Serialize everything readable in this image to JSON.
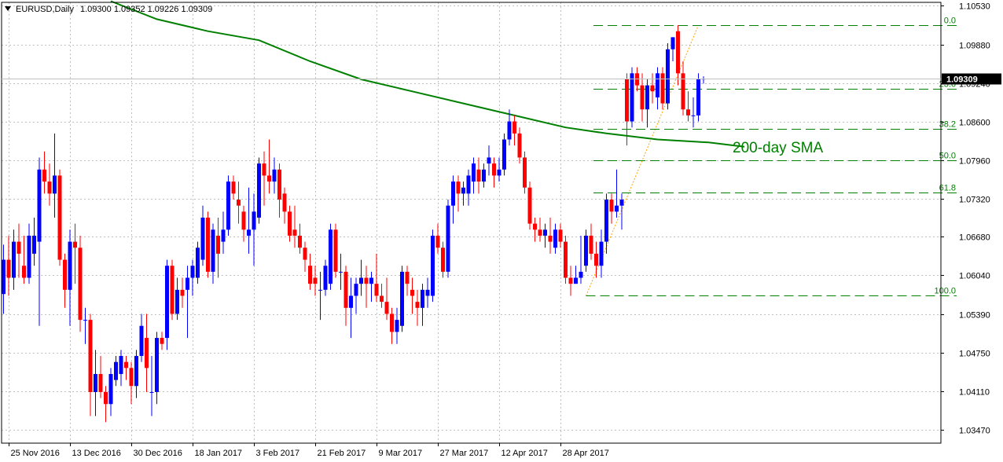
{
  "header": {
    "symbol_text": "EURUSD,Daily",
    "ohlc_text": "1.09300 1.09352 1.09226 1.09309"
  },
  "colors": {
    "bull": "#0000ff",
    "bear": "#ff0000",
    "sma": "#008000",
    "fib": "#008000",
    "grid": "#c0c0c0",
    "fib_trend": "#ffa500"
  },
  "chart_data": {
    "type": "candlestick",
    "symbol": "EURUSD",
    "timeframe": "Daily",
    "ylim": [
      1.0325,
      1.1058
    ],
    "y_ticks": [
      "1.10530",
      "1.09880",
      "1.09240",
      "1.08600",
      "1.07960",
      "1.07320",
      "1.06680",
      "1.06040",
      "1.05390",
      "1.04750",
      "1.04110",
      "1.03470"
    ],
    "x_tick_labels": [
      "25 Nov 2016",
      "13 Dec 2016",
      "30 Dec 2016",
      "18 Jan 2017",
      "3 Feb 2017",
      "21 Feb 2017",
      "9 Mar 2017",
      "27 Mar 2017",
      "12 Apr 2017",
      "28 Apr 2017"
    ],
    "x_tick_positions": [
      1,
      13,
      25,
      37,
      49,
      61,
      73,
      85,
      97,
      109
    ],
    "current_price": "1.09309",
    "candles": [
      {
        "o": 1.0573,
        "h": 1.0655,
        "l": 1.054,
        "c": 1.063
      },
      {
        "o": 1.063,
        "h": 1.067,
        "l": 1.057,
        "c": 1.06
      },
      {
        "o": 1.06,
        "h": 1.068,
        "l": 1.058,
        "c": 1.066
      },
      {
        "o": 1.066,
        "h": 1.069,
        "l": 1.06,
        "c": 1.064
      },
      {
        "o": 1.062,
        "h": 1.067,
        "l": 1.059,
        "c": 1.06
      },
      {
        "o": 1.06,
        "h": 1.069,
        "l": 1.059,
        "c": 1.067
      },
      {
        "o": 1.064,
        "h": 1.07,
        "l": 1.062,
        "c": 1.067
      },
      {
        "o": 1.066,
        "h": 1.08,
        "l": 1.052,
        "c": 1.078
      },
      {
        "o": 1.078,
        "h": 1.081,
        "l": 1.074,
        "c": 1.076
      },
      {
        "o": 1.076,
        "h": 1.079,
        "l": 1.072,
        "c": 1.074
      },
      {
        "o": 1.074,
        "h": 1.084,
        "l": 1.07,
        "c": 1.077
      },
      {
        "o": 1.077,
        "h": 1.078,
        "l": 1.062,
        "c": 1.063
      },
      {
        "o": 1.063,
        "h": 1.064,
        "l": 1.055,
        "c": 1.058
      },
      {
        "o": 1.058,
        "h": 1.068,
        "l": 1.052,
        "c": 1.066
      },
      {
        "o": 1.066,
        "h": 1.069,
        "l": 1.059,
        "c": 1.065
      },
      {
        "o": 1.065,
        "h": 1.067,
        "l": 1.051,
        "c": 1.053
      },
      {
        "o": 1.053,
        "h": 1.055,
        "l": 1.049,
        "c": 1.053
      },
      {
        "o": 1.053,
        "h": 1.054,
        "l": 1.037,
        "c": 1.041
      },
      {
        "o": 1.041,
        "h": 1.048,
        "l": 1.037,
        "c": 1.044
      },
      {
        "o": 1.044,
        "h": 1.047,
        "l": 1.04,
        "c": 1.041
      },
      {
        "o": 1.041,
        "h": 1.042,
        "l": 1.036,
        "c": 1.039
      },
      {
        "o": 1.039,
        "h": 1.045,
        "l": 1.037,
        "c": 1.044
      },
      {
        "o": 1.043,
        "h": 1.047,
        "l": 1.042,
        "c": 1.046
      },
      {
        "o": 1.044,
        "h": 1.048,
        "l": 1.042,
        "c": 1.047
      },
      {
        "o": 1.046,
        "h": 1.047,
        "l": 1.043,
        "c": 1.045
      },
      {
        "o": 1.045,
        "h": 1.046,
        "l": 1.039,
        "c": 1.042
      },
      {
        "o": 1.042,
        "h": 1.048,
        "l": 1.04,
        "c": 1.047
      },
      {
        "o": 1.047,
        "h": 1.054,
        "l": 1.046,
        "c": 1.052
      },
      {
        "o": 1.05,
        "h": 1.054,
        "l": 1.041,
        "c": 1.045
      },
      {
        "o": 1.041,
        "h": 1.047,
        "l": 1.037,
        "c": 1.041
      },
      {
        "o": 1.041,
        "h": 1.051,
        "l": 1.039,
        "c": 1.05
      },
      {
        "o": 1.05,
        "h": 1.051,
        "l": 1.048,
        "c": 1.049
      },
      {
        "o": 1.05,
        "h": 1.063,
        "l": 1.048,
        "c": 1.062
      },
      {
        "o": 1.062,
        "h": 1.063,
        "l": 1.053,
        "c": 1.054
      },
      {
        "o": 1.054,
        "h": 1.06,
        "l": 1.053,
        "c": 1.058
      },
      {
        "o": 1.058,
        "h": 1.06,
        "l": 1.055,
        "c": 1.057
      },
      {
        "o": 1.058,
        "h": 1.062,
        "l": 1.05,
        "c": 1.06
      },
      {
        "o": 1.06,
        "h": 1.063,
        "l": 1.057,
        "c": 1.062
      },
      {
        "o": 1.06,
        "h": 1.066,
        "l": 1.059,
        "c": 1.065
      },
      {
        "o": 1.063,
        "h": 1.072,
        "l": 1.062,
        "c": 1.07
      },
      {
        "o": 1.07,
        "h": 1.071,
        "l": 1.06,
        "c": 1.061
      },
      {
        "o": 1.061,
        "h": 1.069,
        "l": 1.059,
        "c": 1.068
      },
      {
        "o": 1.067,
        "h": 1.07,
        "l": 1.06,
        "c": 1.064
      },
      {
        "o": 1.066,
        "h": 1.071,
        "l": 1.064,
        "c": 1.068
      },
      {
        "o": 1.068,
        "h": 1.077,
        "l": 1.067,
        "c": 1.076
      },
      {
        "o": 1.076,
        "h": 1.077,
        "l": 1.073,
        "c": 1.074
      },
      {
        "o": 1.073,
        "h": 1.076,
        "l": 1.069,
        "c": 1.072
      },
      {
        "o": 1.071,
        "h": 1.072,
        "l": 1.066,
        "c": 1.068
      },
      {
        "o": 1.067,
        "h": 1.075,
        "l": 1.064,
        "c": 1.068
      },
      {
        "o": 1.068,
        "h": 1.074,
        "l": 1.062,
        "c": 1.071
      },
      {
        "o": 1.07,
        "h": 1.08,
        "l": 1.069,
        "c": 1.079
      },
      {
        "o": 1.079,
        "h": 1.081,
        "l": 1.072,
        "c": 1.077
      },
      {
        "o": 1.077,
        "h": 1.083,
        "l": 1.074,
        "c": 1.076
      },
      {
        "o": 1.076,
        "h": 1.08,
        "l": 1.074,
        "c": 1.078
      },
      {
        "o": 1.078,
        "h": 1.079,
        "l": 1.07,
        "c": 1.073
      },
      {
        "o": 1.074,
        "h": 1.075,
        "l": 1.069,
        "c": 1.071
      },
      {
        "o": 1.071,
        "h": 1.072,
        "l": 1.066,
        "c": 1.067
      },
      {
        "o": 1.068,
        "h": 1.072,
        "l": 1.065,
        "c": 1.067
      },
      {
        "o": 1.067,
        "h": 1.069,
        "l": 1.064,
        "c": 1.065
      },
      {
        "o": 1.065,
        "h": 1.066,
        "l": 1.061,
        "c": 1.063
      },
      {
        "o": 1.062,
        "h": 1.064,
        "l": 1.058,
        "c": 1.059
      },
      {
        "o": 1.06,
        "h": 1.062,
        "l": 1.057,
        "c": 1.059
      },
      {
        "o": 1.058,
        "h": 1.061,
        "l": 1.053,
        "c": 1.058
      },
      {
        "o": 1.058,
        "h": 1.063,
        "l": 1.057,
        "c": 1.062
      },
      {
        "o": 1.059,
        "h": 1.069,
        "l": 1.058,
        "c": 1.068
      },
      {
        "o": 1.068,
        "h": 1.069,
        "l": 1.06,
        "c": 1.061
      },
      {
        "o": 1.061,
        "h": 1.064,
        "l": 1.058,
        "c": 1.061
      },
      {
        "o": 1.061,
        "h": 1.062,
        "l": 1.052,
        "c": 1.055
      },
      {
        "o": 1.055,
        "h": 1.06,
        "l": 1.05,
        "c": 1.057
      },
      {
        "o": 1.057,
        "h": 1.06,
        "l": 1.054,
        "c": 1.059
      },
      {
        "o": 1.059,
        "h": 1.063,
        "l": 1.057,
        "c": 1.06
      },
      {
        "o": 1.06,
        "h": 1.062,
        "l": 1.055,
        "c": 1.059
      },
      {
        "o": 1.059,
        "h": 1.061,
        "l": 1.056,
        "c": 1.06
      },
      {
        "o": 1.059,
        "h": 1.064,
        "l": 1.056,
        "c": 1.057
      },
      {
        "o": 1.057,
        "h": 1.059,
        "l": 1.055,
        "c": 1.056
      },
      {
        "o": 1.056,
        "h": 1.06,
        "l": 1.053,
        "c": 1.054
      },
      {
        "o": 1.054,
        "h": 1.055,
        "l": 1.049,
        "c": 1.051
      },
      {
        "o": 1.051,
        "h": 1.055,
        "l": 1.049,
        "c": 1.053
      },
      {
        "o": 1.052,
        "h": 1.062,
        "l": 1.051,
        "c": 1.061
      },
      {
        "o": 1.061,
        "h": 1.062,
        "l": 1.057,
        "c": 1.059
      },
      {
        "o": 1.058,
        "h": 1.06,
        "l": 1.054,
        "c": 1.057
      },
      {
        "o": 1.056,
        "h": 1.058,
        "l": 1.052,
        "c": 1.055
      },
      {
        "o": 1.055,
        "h": 1.059,
        "l": 1.052,
        "c": 1.058
      },
      {
        "o": 1.057,
        "h": 1.06,
        "l": 1.055,
        "c": 1.058
      },
      {
        "o": 1.057,
        "h": 1.068,
        "l": 1.056,
        "c": 1.067
      },
      {
        "o": 1.067,
        "h": 1.069,
        "l": 1.064,
        "c": 1.065
      },
      {
        "o": 1.065,
        "h": 1.066,
        "l": 1.06,
        "c": 1.061
      },
      {
        "o": 1.061,
        "h": 1.073,
        "l": 1.06,
        "c": 1.072
      },
      {
        "o": 1.072,
        "h": 1.077,
        "l": 1.069,
        "c": 1.076
      },
      {
        "o": 1.076,
        "h": 1.077,
        "l": 1.071,
        "c": 1.074
      },
      {
        "o": 1.074,
        "h": 1.076,
        "l": 1.072,
        "c": 1.075
      },
      {
        "o": 1.074,
        "h": 1.078,
        "l": 1.072,
        "c": 1.077
      },
      {
        "o": 1.076,
        "h": 1.08,
        "l": 1.074,
        "c": 1.079
      },
      {
        "o": 1.078,
        "h": 1.08,
        "l": 1.074,
        "c": 1.076
      },
      {
        "o": 1.076,
        "h": 1.079,
        "l": 1.075,
        "c": 1.078
      },
      {
        "o": 1.079,
        "h": 1.082,
        "l": 1.077,
        "c": 1.08
      },
      {
        "o": 1.079,
        "h": 1.08,
        "l": 1.075,
        "c": 1.077
      },
      {
        "o": 1.077,
        "h": 1.08,
        "l": 1.076,
        "c": 1.078
      },
      {
        "o": 1.078,
        "h": 1.084,
        "l": 1.077,
        "c": 1.083
      },
      {
        "o": 1.083,
        "h": 1.088,
        "l": 1.082,
        "c": 1.086
      },
      {
        "o": 1.086,
        "h": 1.087,
        "l": 1.082,
        "c": 1.084
      },
      {
        "o": 1.084,
        "h": 1.085,
        "l": 1.079,
        "c": 1.08
      },
      {
        "o": 1.08,
        "h": 1.081,
        "l": 1.074,
        "c": 1.075
      },
      {
        "o": 1.075,
        "h": 1.076,
        "l": 1.068,
        "c": 1.069
      },
      {
        "o": 1.069,
        "h": 1.07,
        "l": 1.066,
        "c": 1.068
      },
      {
        "o": 1.068,
        "h": 1.07,
        "l": 1.066,
        "c": 1.067
      },
      {
        "o": 1.067,
        "h": 1.069,
        "l": 1.065,
        "c": 1.068
      },
      {
        "o": 1.067,
        "h": 1.07,
        "l": 1.064,
        "c": 1.066
      },
      {
        "o": 1.065,
        "h": 1.069,
        "l": 1.064,
        "c": 1.068
      },
      {
        "o": 1.068,
        "h": 1.069,
        "l": 1.065,
        "c": 1.066
      },
      {
        "o": 1.066,
        "h": 1.067,
        "l": 1.059,
        "c": 1.06
      },
      {
        "o": 1.06,
        "h": 1.062,
        "l": 1.057,
        "c": 1.059
      },
      {
        "o": 1.059,
        "h": 1.062,
        "l": 1.059,
        "c": 1.06
      },
      {
        "o": 1.06,
        "h": 1.067,
        "l": 1.059,
        "c": 1.061
      },
      {
        "o": 1.062,
        "h": 1.068,
        "l": 1.061,
        "c": 1.067
      },
      {
        "o": 1.067,
        "h": 1.069,
        "l": 1.063,
        "c": 1.064
      },
      {
        "o": 1.064,
        "h": 1.066,
        "l": 1.06,
        "c": 1.062
      },
      {
        "o": 1.062,
        "h": 1.068,
        "l": 1.06,
        "c": 1.066
      },
      {
        "o": 1.066,
        "h": 1.074,
        "l": 1.064,
        "c": 1.073
      },
      {
        "o": 1.073,
        "h": 1.074,
        "l": 1.069,
        "c": 1.071
      },
      {
        "o": 1.071,
        "h": 1.078,
        "l": 1.07,
        "c": 1.072
      },
      {
        "o": 1.072,
        "h": 1.074,
        "l": 1.068,
        "c": 1.073
      },
      {
        "o": 1.093,
        "h": 1.094,
        "l": 1.082,
        "c": 1.086
      },
      {
        "o": 1.086,
        "h": 1.095,
        "l": 1.085,
        "c": 1.094
      },
      {
        "o": 1.094,
        "h": 1.095,
        "l": 1.091,
        "c": 1.092
      },
      {
        "o": 1.092,
        "h": 1.094,
        "l": 1.086,
        "c": 1.088
      },
      {
        "o": 1.088,
        "h": 1.093,
        "l": 1.085,
        "c": 1.092
      },
      {
        "o": 1.092,
        "h": 1.094,
        "l": 1.089,
        "c": 1.091
      },
      {
        "o": 1.09,
        "h": 1.095,
        "l": 1.088,
        "c": 1.094
      },
      {
        "o": 1.094,
        "h": 1.095,
        "l": 1.088,
        "c": 1.089
      },
      {
        "o": 1.089,
        "h": 1.099,
        "l": 1.088,
        "c": 1.098
      },
      {
        "o": 1.098,
        "h": 1.1,
        "l": 1.096,
        "c": 1.1
      },
      {
        "o": 1.101,
        "h": 1.102,
        "l": 1.092,
        "c": 1.094
      },
      {
        "o": 1.094,
        "h": 1.096,
        "l": 1.087,
        "c": 1.088
      },
      {
        "o": 1.088,
        "h": 1.091,
        "l": 1.086,
        "c": 1.087
      },
      {
        "o": 1.087,
        "h": 1.09,
        "l": 1.085,
        "c": 1.087
      },
      {
        "o": 1.087,
        "h": 1.094,
        "l": 1.086,
        "c": 1.093
      },
      {
        "o": 1.093,
        "h": 1.0935,
        "l": 1.0923,
        "c": 1.0931
      }
    ],
    "sma": {
      "label": "200-day SMA",
      "points": [
        [
          21,
          1.106
        ],
        [
          30,
          1.103
        ],
        [
          40,
          1.101
        ],
        [
          50,
          1.0995
        ],
        [
          60,
          1.096
        ],
        [
          70,
          1.093
        ],
        [
          80,
          1.091
        ],
        [
          90,
          1.089
        ],
        [
          100,
          1.087
        ],
        [
          110,
          1.085
        ],
        [
          118,
          1.084
        ],
        [
          128,
          1.083
        ],
        [
          138,
          1.0825
        ],
        [
          145,
          1.0818
        ]
      ]
    },
    "fibonacci": {
      "low": 1.057,
      "high": 1.102,
      "levels": [
        {
          "label": "0.0",
          "value": 1.102
        },
        {
          "label": "23.6",
          "value": 1.0914
        },
        {
          "label": "38.2",
          "value": 1.0848
        },
        {
          "label": "50.0",
          "value": 1.0795
        },
        {
          "label": "61.8",
          "value": 1.0742
        },
        {
          "label": "100.0",
          "value": 1.057
        }
      ],
      "anchor_low_index": 114,
      "anchor_high_index": 136
    }
  }
}
